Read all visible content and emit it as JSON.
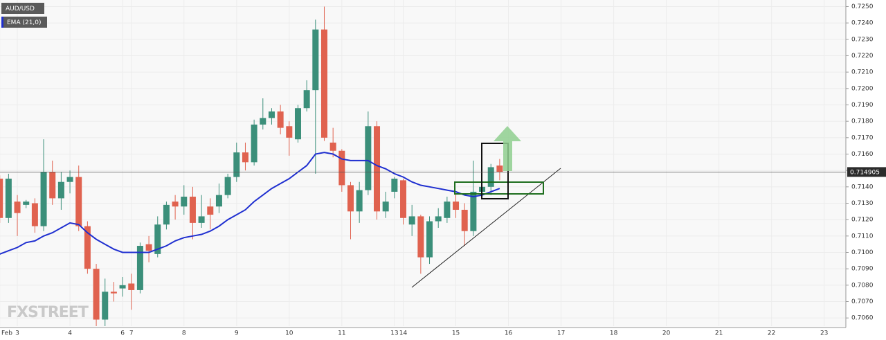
{
  "chart_data": {
    "type": "candlestick",
    "title": "AUD/USD",
    "watermark": "FXSTREET",
    "up_color": "#3b8f7a",
    "down_color": "#e0624f",
    "categories": [
      "Feb",
      null,
      "3",
      null,
      null,
      null,
      null,
      null,
      "4",
      null,
      null,
      null,
      null,
      null,
      "6",
      "7",
      null,
      null,
      null,
      null,
      null,
      "8",
      null,
      null,
      null,
      null,
      null,
      "9",
      null,
      null,
      null,
      null,
      null,
      "10",
      null,
      null,
      null,
      null,
      null,
      "11",
      null,
      null,
      null,
      null,
      null,
      "13",
      "14",
      null,
      null,
      null,
      null,
      null,
      "15",
      null,
      null,
      null,
      null,
      null,
      "16",
      null,
      null,
      null,
      null,
      null,
      "17",
      null,
      null,
      null,
      null,
      null,
      "18",
      null,
      null,
      null,
      null,
      null,
      "20",
      null,
      null,
      null,
      null,
      null,
      "21",
      null,
      null,
      null,
      null,
      null,
      "22",
      null,
      null,
      null,
      null,
      null,
      "23"
    ],
    "open": [
      0.7145,
      0.7121,
      0.7131,
      0.7129,
      0.713,
      0.7116,
      0.7149,
      0.7133,
      0.7143,
      0.7146,
      0.7116,
      0.709,
      0.7059,
      0.7076,
      0.7078,
      0.7081,
      0.7077,
      0.7105,
      0.7099,
      0.7117,
      0.7131,
      0.7128,
      0.7134,
      0.7118,
      0.7128,
      0.7128,
      0.7135,
      0.7146,
      0.7161,
      0.7155,
      0.7178,
      0.7182,
      0.7186,
      0.7177,
      0.7169,
      0.7188,
      0.7199,
      0.7236,
      0.7167,
      0.7162,
      0.7141,
      0.7125,
      0.7138,
      0.7177,
      0.7125,
      0.7137,
      0.7144,
      0.7117,
      0.7122,
      0.7097,
      0.7119,
      0.7121,
      0.7131,
      0.7126,
      0.7113,
      0.7137,
      0.714,
      0.7153,
      null,
      null,
      null,
      null,
      null,
      null,
      null,
      null,
      null,
      null,
      null,
      null,
      null,
      null,
      null,
      null,
      null,
      null,
      null,
      null,
      null,
      null,
      null,
      null,
      null,
      null,
      null,
      null,
      null,
      null,
      null,
      null,
      null,
      null,
      null,
      null,
      null
    ],
    "high": [
      0.7147,
      0.7148,
      0.7135,
      0.7132,
      0.7133,
      0.7169,
      0.7156,
      0.7149,
      0.715,
      0.7153,
      0.7119,
      0.7093,
      0.7084,
      0.7082,
      0.7085,
      0.7087,
      0.7106,
      0.711,
      0.7122,
      0.7131,
      0.7135,
      0.7141,
      0.714,
      0.7135,
      0.7133,
      0.7142,
      0.7148,
      0.7167,
      0.7167,
      0.7181,
      0.7194,
      0.7188,
      0.719,
      0.718,
      0.719,
      0.7205,
      0.7242,
      0.725,
      0.7176,
      0.7163,
      0.7143,
      0.7143,
      0.7186,
      0.718,
      0.7137,
      0.7146,
      0.7145,
      0.7129,
      0.7123,
      0.7122,
      0.7127,
      0.7134,
      0.7136,
      0.713,
      0.7156,
      0.7142,
      0.7154,
      0.7157,
      null,
      null,
      null,
      null,
      null,
      null,
      null,
      null,
      null,
      null,
      null,
      null,
      null,
      null,
      null,
      null,
      null,
      null,
      null,
      null,
      null,
      null,
      null,
      null,
      null,
      null,
      null,
      null,
      null,
      null,
      null,
      null,
      null,
      null,
      null,
      null,
      null
    ],
    "low": [
      0.7118,
      0.7118,
      0.711,
      0.7127,
      0.7112,
      0.7113,
      0.7129,
      0.7126,
      0.7136,
      0.7113,
      0.7087,
      0.7055,
      0.7055,
      0.707,
      0.7073,
      0.7065,
      0.7075,
      0.7094,
      0.7097,
      0.7114,
      0.712,
      0.7123,
      0.7108,
      0.7115,
      0.7114,
      0.7124,
      0.7133,
      0.7143,
      0.715,
      0.7153,
      0.7175,
      0.7178,
      0.7172,
      0.7159,
      0.7167,
      0.7186,
      0.7148,
      0.7168,
      0.7158,
      0.7137,
      0.7108,
      0.7118,
      0.7135,
      0.712,
      0.7121,
      0.7133,
      0.7117,
      0.711,
      0.7087,
      0.7093,
      0.7115,
      0.7118,
      0.7121,
      0.7104,
      0.711,
      0.7134,
      0.7135,
      0.7144,
      null,
      null,
      null,
      null,
      null,
      null,
      null,
      null,
      null,
      null,
      null,
      null,
      null,
      null,
      null,
      null,
      null,
      null,
      null,
      null,
      null,
      null,
      null,
      null,
      null,
      null,
      null,
      null,
      null,
      null,
      null,
      null,
      null,
      null,
      null,
      null,
      null
    ],
    "close": [
      0.7121,
      0.7145,
      0.7124,
      0.7131,
      0.7116,
      0.7149,
      0.7133,
      0.7143,
      0.7146,
      0.7116,
      0.709,
      0.7059,
      0.7076,
      0.7075,
      0.708,
      0.7077,
      0.7104,
      0.7101,
      0.7117,
      0.7129,
      0.7128,
      0.7134,
      0.7118,
      0.7122,
      0.7123,
      0.7135,
      0.7146,
      0.7161,
      0.7155,
      0.7178,
      0.7182,
      0.7186,
      0.7176,
      0.717,
      0.7188,
      0.7199,
      0.7236,
      0.717,
      0.7162,
      0.7141,
      0.7125,
      0.7138,
      0.7177,
      0.7125,
      0.7131,
      0.7145,
      0.7121,
      0.7122,
      0.7097,
      0.7119,
      0.7122,
      0.7131,
      0.7126,
      0.7113,
      0.7137,
      0.714,
      0.7152,
      0.7149,
      null,
      null,
      null,
      null,
      null,
      null,
      null,
      null,
      null,
      null,
      null,
      null,
      null,
      null,
      null,
      null,
      null,
      null,
      null,
      null,
      null,
      null,
      null,
      null,
      null,
      null,
      null,
      null,
      null,
      null,
      null,
      null,
      null,
      null,
      null,
      null,
      null
    ],
    "ema": {
      "name": "EMA (21,0)",
      "color": "#1f2fd0",
      "values": [
        0.7099,
        0.7101,
        0.7103,
        0.7106,
        0.7107,
        0.711,
        0.7112,
        0.7115,
        0.7118,
        0.7117,
        0.7112,
        0.7108,
        0.7105,
        0.7102,
        0.71,
        0.71,
        0.71,
        0.71,
        0.7102,
        0.7104,
        0.7107,
        0.7109,
        0.711,
        0.7111,
        0.7113,
        0.7116,
        0.712,
        0.7123,
        0.7126,
        0.7131,
        0.7135,
        0.7139,
        0.7142,
        0.7145,
        0.7149,
        0.7153,
        0.716,
        0.7161,
        0.716,
        0.7157,
        0.7156,
        0.7156,
        0.7156,
        0.7153,
        0.7151,
        0.7148,
        0.7146,
        0.7143,
        0.7141,
        0.714,
        0.7139,
        0.7138,
        0.7137,
        0.7135,
        0.7134,
        0.7135,
        0.7137,
        0.7139,
        null,
        null,
        null,
        null,
        null,
        null,
        null,
        null,
        null,
        null,
        null,
        null,
        null,
        null,
        null,
        null,
        null,
        null,
        null,
        null,
        null,
        null,
        null,
        null,
        null,
        null,
        null,
        null,
        null,
        null,
        null,
        null,
        null,
        null,
        null,
        null,
        null
      ]
    },
    "last_price": 0.714905,
    "ylim": [
      0.7055,
      0.7254
    ],
    "yticks": [
      {
        "value": 0.706,
        "label": "0.7060"
      },
      {
        "value": 0.707,
        "label": "0.7070"
      },
      {
        "value": 0.708,
        "label": "0.7080"
      },
      {
        "value": 0.709,
        "label": "0.7090"
      },
      {
        "value": 0.71,
        "label": "0.7100"
      },
      {
        "value": 0.711,
        "label": "0.7110"
      },
      {
        "value": 0.712,
        "label": "0.7120"
      },
      {
        "value": 0.713,
        "label": "0.7130"
      },
      {
        "value": 0.714,
        "label": "0.7140"
      },
      {
        "value": 0.715,
        "label": "0.7150"
      },
      {
        "value": 0.716,
        "label": "0.7160"
      },
      {
        "value": 0.717,
        "label": "0.7170"
      },
      {
        "value": 0.718,
        "label": "0.7180"
      },
      {
        "value": 0.719,
        "label": "0.7190"
      },
      {
        "value": 0.72,
        "label": "0.7200"
      },
      {
        "value": 0.721,
        "label": "0.7210"
      },
      {
        "value": 0.722,
        "label": "0.7220"
      },
      {
        "value": 0.723,
        "label": "0.7230"
      },
      {
        "value": 0.724,
        "label": "0.7240"
      },
      {
        "value": 0.725,
        "label": "0.7250"
      }
    ],
    "grid": true
  }
}
